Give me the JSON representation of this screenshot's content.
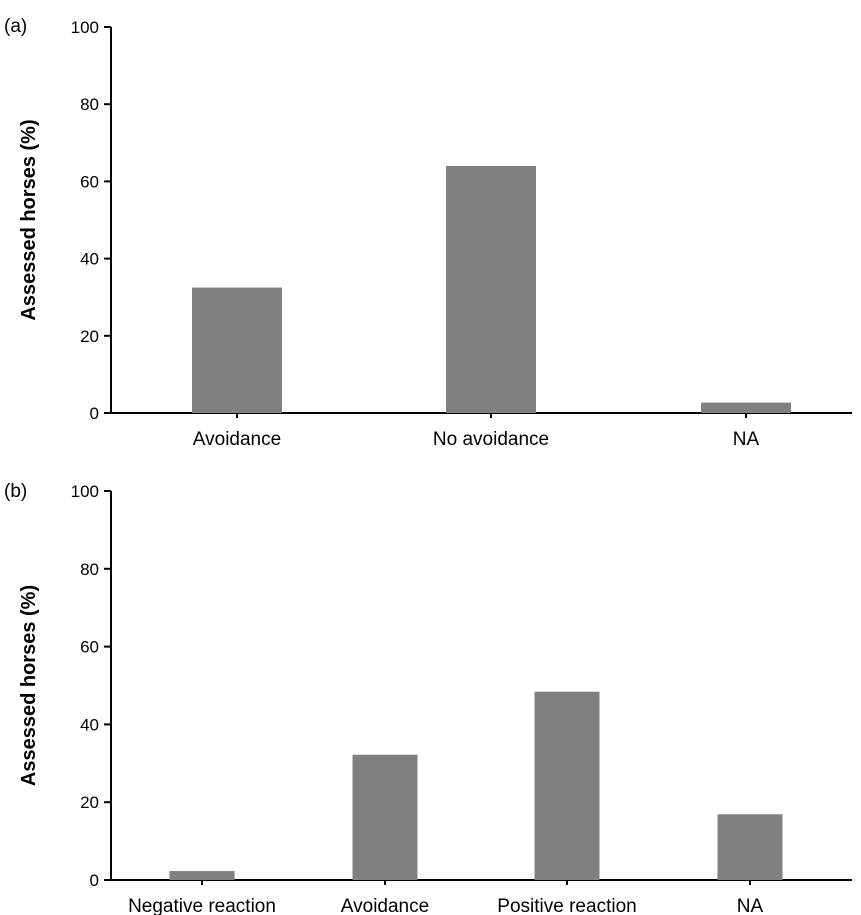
{
  "chart_data": [
    {
      "type": "bar",
      "panel_label": "(a)",
      "title": "",
      "xlabel": "",
      "ylabel": "Assessed horses (%)",
      "ylim": [
        0,
        100
      ],
      "yticks": [
        "0",
        "20",
        "40",
        "60",
        "80",
        "100"
      ],
      "grid": false,
      "categories": [
        "Avoidance",
        "No avoidance",
        "NA"
      ],
      "values": [
        32.5,
        64,
        2.7
      ],
      "bar_color": "#808080"
    },
    {
      "type": "bar",
      "panel_label": "(b)",
      "title": "",
      "xlabel": "",
      "ylabel": "Assessed horses (%)",
      "ylim": [
        0,
        100
      ],
      "yticks": [
        "0",
        "20",
        "40",
        "60",
        "80",
        "100"
      ],
      "grid": false,
      "categories": [
        "Negative reaction",
        "Avoidance",
        "Positive reaction",
        "NA"
      ],
      "values": [
        2.3,
        32.2,
        48.4,
        16.9
      ],
      "bar_color": "#808080"
    }
  ]
}
